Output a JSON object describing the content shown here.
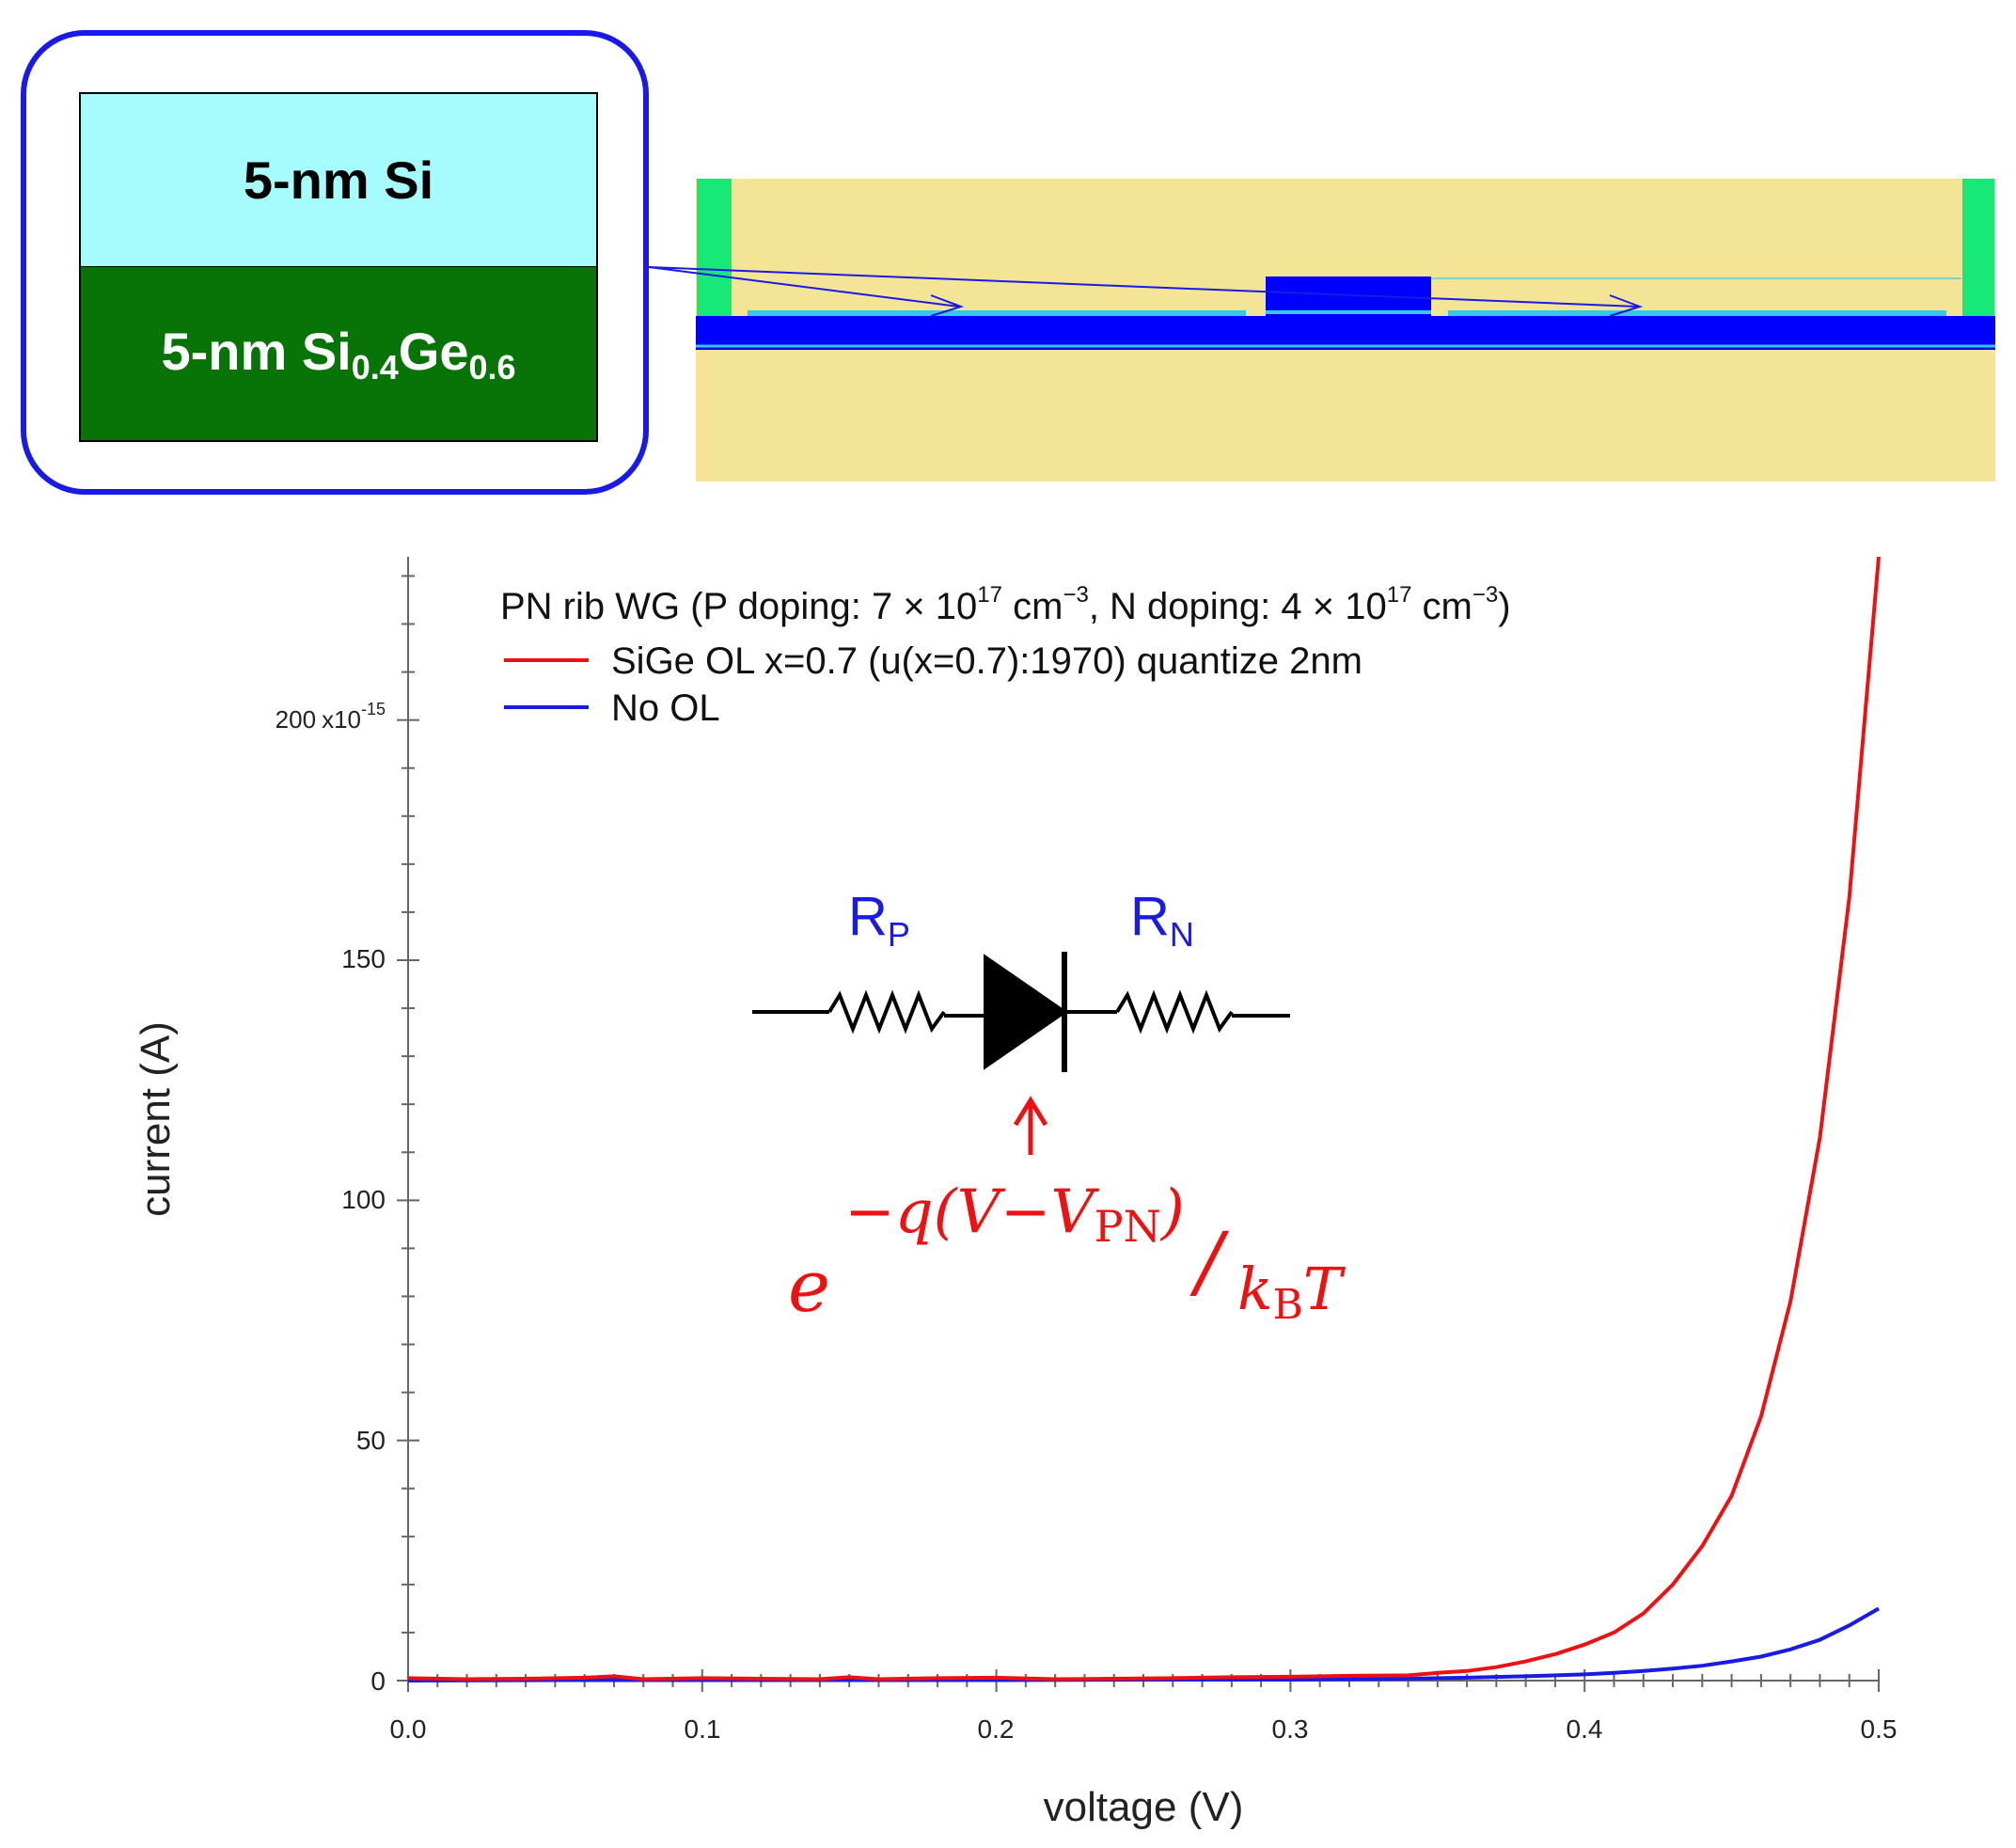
{
  "layer_stack": {
    "top_layer": "5-nm Si",
    "bottom_layer_prefix": "5-nm Si",
    "bottom_layer_sub1": "0.4",
    "bottom_layer_mid": "Ge",
    "bottom_layer_sub2": "0.6"
  },
  "colors": {
    "sige_series": "#ee1111",
    "no_ol_series": "#1a1ae6",
    "cladding": "#f4e495",
    "silicon_rib": "#0000ff",
    "contact": "#18e878",
    "si_layer": "#a6fcfc",
    "sige_layer": "#087408"
  },
  "circuit": {
    "left_resistor": "R",
    "left_resistor_sub": "P",
    "right_resistor": "R",
    "right_resistor_sub": "N"
  },
  "equation": {
    "base": "e",
    "exponent": "−q(V−V",
    "exponent_sub": "PN",
    "exponent_close": ")",
    "slash": "/",
    "denominator": "k",
    "denominator_sub": "B",
    "denominator_tail": "T"
  },
  "chart_data": {
    "type": "line",
    "title": "",
    "xlabel": "voltage (V)",
    "ylabel": "current (A)",
    "xlim": [
      0.0,
      0.5
    ],
    "ylim": [
      0,
      234
    ],
    "y_scale_note": "x10^-15",
    "x_ticks": [
      "0.0",
      "0.1",
      "0.2",
      "0.3",
      "0.4",
      "0.5"
    ],
    "y_ticks": [
      "0",
      "50",
      "100",
      "150"
    ],
    "y_top_tick": {
      "value": "200",
      "multiplier": "x10",
      "exponent": "-15"
    },
    "legend": {
      "header_parts": {
        "pre": "PN rib WG (P doping: 7 × 10",
        "sup1": "17",
        "mid1": " cm",
        "sup2": "−3",
        "mid2": ", N doping: 4 × 10",
        "sup3": "17",
        "mid3": " cm",
        "sup4": "−3",
        "post": ")"
      },
      "entries": [
        "SiGe OL x=0.7 (u(x=0.7):1970) quantize 2nm",
        "No OL"
      ]
    },
    "series": [
      {
        "name": "SiGe OL x=0.7 (u(x=0.7):1970) quantize 2nm",
        "x": [
          0.0,
          0.02,
          0.04,
          0.06,
          0.07,
          0.08,
          0.1,
          0.12,
          0.14,
          0.15,
          0.16,
          0.18,
          0.2,
          0.22,
          0.24,
          0.26,
          0.28,
          0.3,
          0.32,
          0.34,
          0.35,
          0.36,
          0.37,
          0.38,
          0.39,
          0.4,
          0.41,
          0.42,
          0.43,
          0.44,
          0.45,
          0.46,
          0.47,
          0.48,
          0.49,
          0.5
        ],
        "values": [
          0.5,
          0.3,
          0.4,
          0.6,
          0.9,
          0.3,
          0.5,
          0.4,
          0.3,
          0.7,
          0.3,
          0.5,
          0.6,
          0.3,
          0.4,
          0.5,
          0.7,
          0.8,
          1.0,
          1.1,
          1.6,
          2.0,
          2.8,
          4.0,
          5.5,
          7.5,
          10.0,
          14.0,
          20.0,
          28.0,
          38.5,
          55.0,
          79.0,
          113.0,
          163.0,
          234.0
        ]
      },
      {
        "name": "No OL",
        "x": [
          0.0,
          0.05,
          0.1,
          0.15,
          0.2,
          0.25,
          0.3,
          0.32,
          0.34,
          0.36,
          0.38,
          0.4,
          0.41,
          0.42,
          0.43,
          0.44,
          0.45,
          0.46,
          0.47,
          0.48,
          0.49,
          0.5
        ],
        "values": [
          0.0,
          0.1,
          0.1,
          0.1,
          0.1,
          0.2,
          0.2,
          0.3,
          0.4,
          0.6,
          0.9,
          1.3,
          1.6,
          2.0,
          2.5,
          3.1,
          4.0,
          5.0,
          6.5,
          8.5,
          11.5,
          15.0
        ]
      }
    ]
  }
}
